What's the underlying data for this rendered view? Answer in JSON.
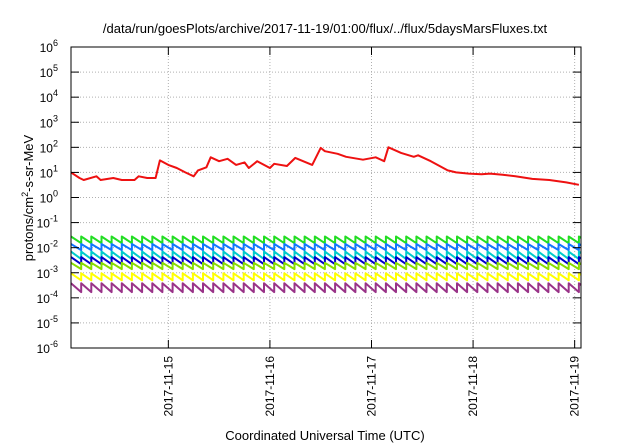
{
  "chart_data": {
    "type": "line",
    "title": "/data/run/goesPlots/archive/2017-11-19/01:00/flux/../flux/5daysMarsFluxes.txt",
    "xlabel": "Coordinated Universal Time (UTC)",
    "ylabel": {
      "pre": "protons/cm",
      "sup": "2",
      "post": "-s-sr-MeV"
    },
    "yscale": "log",
    "ylim": [
      1e-06,
      1000000.0
    ],
    "xlim": [
      "2017-11-14T01:00",
      "2017-11-19T01:30"
    ],
    "grid": true,
    "x_ticks": [
      {
        "label": "2017-11-15",
        "at": "2017-11-15T00:00"
      },
      {
        "label": "2017-11-16",
        "at": "2017-11-16T00:00"
      },
      {
        "label": "2017-11-17",
        "at": "2017-11-17T00:00"
      },
      {
        "label": "2017-11-18",
        "at": "2017-11-18T00:00"
      },
      {
        "label": "2017-11-19",
        "at": "2017-11-19T00:00"
      }
    ],
    "y_ticks": [
      {
        "base": "10",
        "exp": "-6"
      },
      {
        "base": "10",
        "exp": "-5"
      },
      {
        "base": "10",
        "exp": "-4"
      },
      {
        "base": "10",
        "exp": "-3"
      },
      {
        "base": "10",
        "exp": "-2"
      },
      {
        "base": "10",
        "exp": "-1"
      },
      {
        "base": "10",
        "exp": "0"
      },
      {
        "base": "10",
        "exp": "1"
      },
      {
        "base": "10",
        "exp": "2"
      },
      {
        "base": "10",
        "exp": "3"
      },
      {
        "base": "10",
        "exp": "4"
      },
      {
        "base": "10",
        "exp": "5"
      },
      {
        "base": "10",
        "exp": "6"
      }
    ],
    "series": [
      {
        "color": "#ee1111",
        "x": [
          "2017-11-14T01:00",
          "2017-11-14T03:00",
          "2017-11-14T04:00",
          "2017-11-14T07:00",
          "2017-11-14T08:00",
          "2017-11-14T11:00",
          "2017-11-14T13:00",
          "2017-11-14T16:00",
          "2017-11-14T17:00",
          "2017-11-14T19:00",
          "2017-11-14T21:00",
          "2017-11-14T22:00",
          "2017-11-15T00:00",
          "2017-11-15T02:00",
          "2017-11-15T04:00",
          "2017-11-15T06:00",
          "2017-11-15T07:00",
          "2017-11-15T09:00",
          "2017-11-15T10:00",
          "2017-11-15T12:00",
          "2017-11-15T14:00",
          "2017-11-15T16:00",
          "2017-11-15T18:00",
          "2017-11-15T19:00",
          "2017-11-15T21:00",
          "2017-11-16T00:00",
          "2017-11-16T01:00",
          "2017-11-16T04:00",
          "2017-11-16T06:00",
          "2017-11-16T10:00",
          "2017-11-16T12:00",
          "2017-11-16T13:00",
          "2017-11-16T16:00",
          "2017-11-16T18:00",
          "2017-11-16T22:00",
          "2017-11-17T01:00",
          "2017-11-17T03:00",
          "2017-11-17T04:00",
          "2017-11-17T07:00",
          "2017-11-17T10:00",
          "2017-11-17T11:00",
          "2017-11-17T14:00",
          "2017-11-17T18:00",
          "2017-11-17T20:00",
          "2017-11-17T23:00",
          "2017-11-18T02:00",
          "2017-11-18T04:00",
          "2017-11-18T07:00",
          "2017-11-18T10:00",
          "2017-11-18T14:00",
          "2017-11-18T18:00",
          "2017-11-18T22:00",
          "2017-11-19T01:00"
        ],
        "values": [
          10,
          6,
          5,
          7,
          5,
          6,
          5,
          5,
          7,
          6,
          6,
          30,
          20,
          15,
          10,
          7,
          12,
          16,
          40,
          28,
          35,
          20,
          25,
          15,
          28,
          15,
          22,
          18,
          38,
          20,
          95,
          70,
          55,
          42,
          32,
          40,
          28,
          100,
          60,
          42,
          48,
          28,
          12,
          10,
          9,
          8.5,
          9,
          8,
          7,
          5.5,
          5,
          4,
          3.2
        ]
      },
      {
        "color": "#22dd22",
        "sawtooth": true,
        "period_h": 2.4,
        "peak": 0.028,
        "trough": 0.015
      },
      {
        "color": "#1177ff",
        "sawtooth": true,
        "period_h": 2.4,
        "peak": 0.014,
        "trough": 0.008
      },
      {
        "color": "#00cccc",
        "sawtooth": true,
        "period_h": 2.4,
        "peak": 0.007,
        "trough": 0.0035
      },
      {
        "color": "#0000cc",
        "sawtooth": true,
        "period_h": 2.4,
        "peak": 0.0042,
        "trough": 0.0022
      },
      {
        "color": "#88dd00",
        "sawtooth": true,
        "period_h": 2.4,
        "peak": 0.0025,
        "trough": 0.0014
      },
      {
        "color": "#ffff00",
        "sawtooth": true,
        "period_h": 2.4,
        "peak": 0.00095,
        "trough": 0.0005
      },
      {
        "color": "#993388",
        "sawtooth": true,
        "period_h": 2.4,
        "peak": 0.00038,
        "trough": 0.00017
      }
    ]
  }
}
